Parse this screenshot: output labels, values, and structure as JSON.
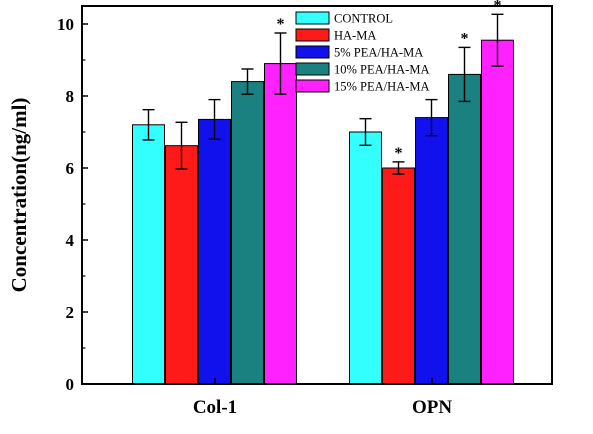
{
  "chart_data": {
    "type": "bar",
    "title": "",
    "xlabel": "",
    "ylabel": "Concentration(ng/ml)",
    "ylim": [
      0,
      10.5
    ],
    "yticks": [
      0,
      2,
      4,
      6,
      8,
      10
    ],
    "categories": [
      "Col-1",
      "OPN"
    ],
    "series": [
      {
        "name": "CONTROL",
        "color": "#33FFFF",
        "values": [
          7.2,
          7.0
        ],
        "errors": [
          0.42,
          0.37
        ],
        "significant": [
          false,
          false
        ]
      },
      {
        "name": "HA-MA",
        "color": "#FF1A1A",
        "values": [
          6.62,
          6.0
        ],
        "errors": [
          0.65,
          0.17
        ],
        "significant": [
          false,
          true
        ]
      },
      {
        "name": "5% PEA/HA-MA",
        "color": "#1111EE",
        "values": [
          7.35,
          7.4
        ],
        "errors": [
          0.55,
          0.5
        ],
        "significant": [
          false,
          false
        ]
      },
      {
        "name": "10% PEA/HA-MA",
        "color": "#1A8080",
        "values": [
          8.4,
          8.6
        ],
        "errors": [
          0.35,
          0.75
        ],
        "significant": [
          false,
          true
        ]
      },
      {
        "name": "15% PEA/HA-MA",
        "color": "#FF22FF",
        "values": [
          8.9,
          9.55
        ],
        "errors": [
          0.85,
          0.72
        ],
        "significant": [
          true,
          true
        ]
      }
    ],
    "significance_marker": "*",
    "legend_position": "top-center",
    "grid": false
  }
}
